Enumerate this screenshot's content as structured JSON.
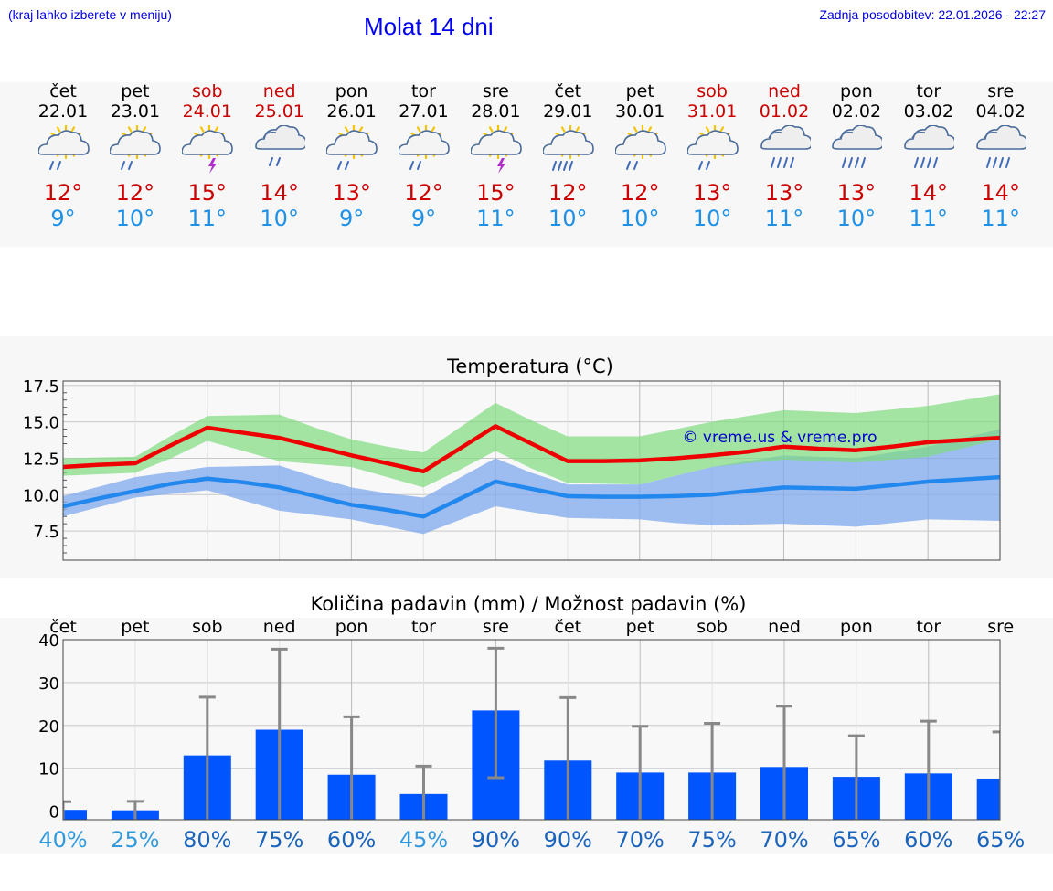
{
  "header": {
    "left_note": "(kraj lahko izberete v meniju)",
    "title": "Molat 14 dni",
    "updated": "Zadnja posodobitev: 22.01.2026 - 22:27"
  },
  "days": [
    {
      "name": "čet",
      "date": "22.01",
      "weekend": false,
      "icon": "partly-sunny-rain-icon",
      "hi": "12°",
      "lo": "9°"
    },
    {
      "name": "pet",
      "date": "23.01",
      "weekend": false,
      "icon": "partly-sunny-rain-icon",
      "hi": "12°",
      "lo": "10°"
    },
    {
      "name": "sob",
      "date": "24.01",
      "weekend": true,
      "icon": "sun-thunderstorm-icon",
      "hi": "15°",
      "lo": "11°"
    },
    {
      "name": "ned",
      "date": "25.01",
      "weekend": true,
      "icon": "cloud-rain-icon",
      "hi": "14°",
      "lo": "10°"
    },
    {
      "name": "pon",
      "date": "26.01",
      "weekend": false,
      "icon": "partly-sunny-rain-icon",
      "hi": "13°",
      "lo": "9°"
    },
    {
      "name": "tor",
      "date": "27.01",
      "weekend": false,
      "icon": "partly-sunny-rain-icon",
      "hi": "12°",
      "lo": "9°"
    },
    {
      "name": "sre",
      "date": "28.01",
      "weekend": false,
      "icon": "sun-thunderstorm-icon",
      "hi": "15°",
      "lo": "11°"
    },
    {
      "name": "čet",
      "date": "29.01",
      "weekend": false,
      "icon": "partly-sunny-heavy-rain-icon",
      "hi": "12°",
      "lo": "10°"
    },
    {
      "name": "pet",
      "date": "30.01",
      "weekend": false,
      "icon": "partly-sunny-rain-icon",
      "hi": "12°",
      "lo": "10°"
    },
    {
      "name": "sob",
      "date": "31.01",
      "weekend": true,
      "icon": "partly-sunny-rain-icon",
      "hi": "13°",
      "lo": "10°"
    },
    {
      "name": "ned",
      "date": "01.02",
      "weekend": true,
      "icon": "cloud-heavy-rain-icon",
      "hi": "13°",
      "lo": "11°"
    },
    {
      "name": "pon",
      "date": "02.02",
      "weekend": false,
      "icon": "cloud-heavy-rain-icon",
      "hi": "13°",
      "lo": "10°"
    },
    {
      "name": "tor",
      "date": "03.02",
      "weekend": false,
      "icon": "cloud-heavy-rain-icon",
      "hi": "14°",
      "lo": "11°"
    },
    {
      "name": "sre",
      "date": "04.02",
      "weekend": false,
      "icon": "cloud-heavy-rain-icon",
      "hi": "14°",
      "lo": "11°"
    }
  ],
  "colors": {
    "max_line": "#ee0000",
    "min_line": "#2288ee",
    "max_band": "#7fdc7f",
    "min_band": "#7fa8ee",
    "bar": "#0055ff",
    "whisker": "#888888",
    "weekend": "#cc0000",
    "low_text": "#1e90e6"
  },
  "chart_data": [
    {
      "type": "line",
      "title": "Temperatura (°C)",
      "watermark": "© vreme.us & vreme.pro",
      "ylim": [
        5.5,
        17.8
      ],
      "yticks": [
        "17.5",
        "15.0",
        "12.5",
        "10.0",
        "7.5"
      ],
      "ytick_values": [
        17.5,
        15.0,
        12.5,
        10.0,
        7.5
      ],
      "x": [
        0,
        0.5,
        1,
        1.5,
        2,
        2.5,
        3,
        3.5,
        4,
        4.5,
        5,
        5.5,
        6,
        6.5,
        7,
        7.5,
        8,
        8.5,
        9,
        9.5,
        10,
        10.5,
        11,
        11.5,
        12,
        12.5,
        13
      ],
      "series": [
        {
          "name": "max",
          "values": [
            11.9,
            12.05,
            12.15,
            13.4,
            14.6,
            14.25,
            13.9,
            13.3,
            12.7,
            12.15,
            11.6,
            13.15,
            14.7,
            13.5,
            12.3,
            12.3,
            12.35,
            12.5,
            12.7,
            12.95,
            13.3,
            13.15,
            13.05,
            13.3,
            13.6,
            13.75,
            13.9
          ],
          "band_high": [
            12.5,
            12.55,
            12.6,
            14.05,
            15.4,
            15.45,
            15.5,
            14.6,
            13.8,
            13.3,
            12.9,
            14.6,
            16.3,
            15.1,
            14.0,
            14.0,
            14.0,
            14.5,
            15.0,
            15.4,
            15.8,
            15.7,
            15.6,
            15.85,
            16.1,
            16.5,
            16.9
          ],
          "band_low": [
            11.3,
            11.4,
            11.5,
            12.5,
            13.7,
            13.0,
            12.3,
            12.1,
            11.9,
            11.2,
            10.5,
            11.7,
            13.0,
            11.8,
            10.8,
            10.75,
            10.7,
            11.3,
            11.9,
            12.15,
            12.4,
            12.3,
            12.2,
            12.4,
            12.6,
            13.2,
            13.8
          ]
        },
        {
          "name": "min",
          "values": [
            9.2,
            9.75,
            10.25,
            10.75,
            11.1,
            10.85,
            10.5,
            9.9,
            9.3,
            8.95,
            8.5,
            9.7,
            10.9,
            10.4,
            9.9,
            9.85,
            9.85,
            9.9,
            10.0,
            10.25,
            10.5,
            10.45,
            10.4,
            10.65,
            10.9,
            11.05,
            11.2
          ],
          "band_high": [
            9.9,
            10.55,
            11.2,
            11.55,
            11.9,
            11.95,
            12.0,
            11.2,
            10.5,
            10.1,
            9.8,
            11.15,
            12.5,
            11.5,
            10.7,
            10.7,
            10.7,
            11.3,
            11.9,
            12.3,
            12.7,
            12.6,
            12.5,
            12.9,
            13.3,
            13.9,
            14.5
          ],
          "band_low": [
            8.5,
            9.15,
            9.8,
            10.05,
            10.3,
            9.6,
            8.9,
            8.6,
            8.3,
            7.8,
            7.3,
            8.25,
            9.2,
            8.8,
            8.4,
            8.35,
            8.3,
            8.05,
            7.9,
            7.95,
            8.0,
            7.9,
            7.8,
            8.05,
            8.3,
            8.25,
            8.2
          ]
        }
      ]
    },
    {
      "type": "bar",
      "title": "Količina padavin (mm) / Možnost padavin (%)",
      "categories": [
        "čet",
        "pet",
        "sob",
        "ned",
        "pon",
        "tor",
        "sre",
        "čet",
        "pet",
        "sob",
        "ned",
        "pon",
        "tor",
        "sre"
      ],
      "ylim": [
        -2,
        40
      ],
      "yticks": [
        "40",
        "30",
        "20",
        "10",
        "0"
      ],
      "ytick_values": [
        40,
        30,
        20,
        10,
        0
      ],
      "values": [
        0.3,
        0.2,
        13,
        19,
        8.5,
        4,
        23.5,
        11.8,
        9,
        9,
        10.3,
        8,
        8.8,
        7.6
      ],
      "whisker_low": [
        0,
        0,
        0,
        0,
        0,
        0,
        7.8,
        0,
        0,
        0,
        0,
        0,
        0,
        0
      ],
      "whisker_high": [
        2.2,
        2.3,
        26.6,
        37.8,
        22,
        10.5,
        38,
        26.5,
        19.8,
        20.5,
        24.5,
        17.6,
        21,
        18.5
      ],
      "probability": [
        "40%",
        "25%",
        "80%",
        "75%",
        "60%",
        "45%",
        "90%",
        "90%",
        "70%",
        "75%",
        "70%",
        "65%",
        "60%",
        "65%"
      ],
      "probability_colors": [
        "#3399dd",
        "#3399dd",
        "#1a63bb",
        "#1a63bb",
        "#1a63bb",
        "#3399dd",
        "#1a63bb",
        "#1a63bb",
        "#1a63bb",
        "#1a63bb",
        "#1a63bb",
        "#1a63bb",
        "#1a63bb",
        "#1a63bb"
      ]
    }
  ]
}
